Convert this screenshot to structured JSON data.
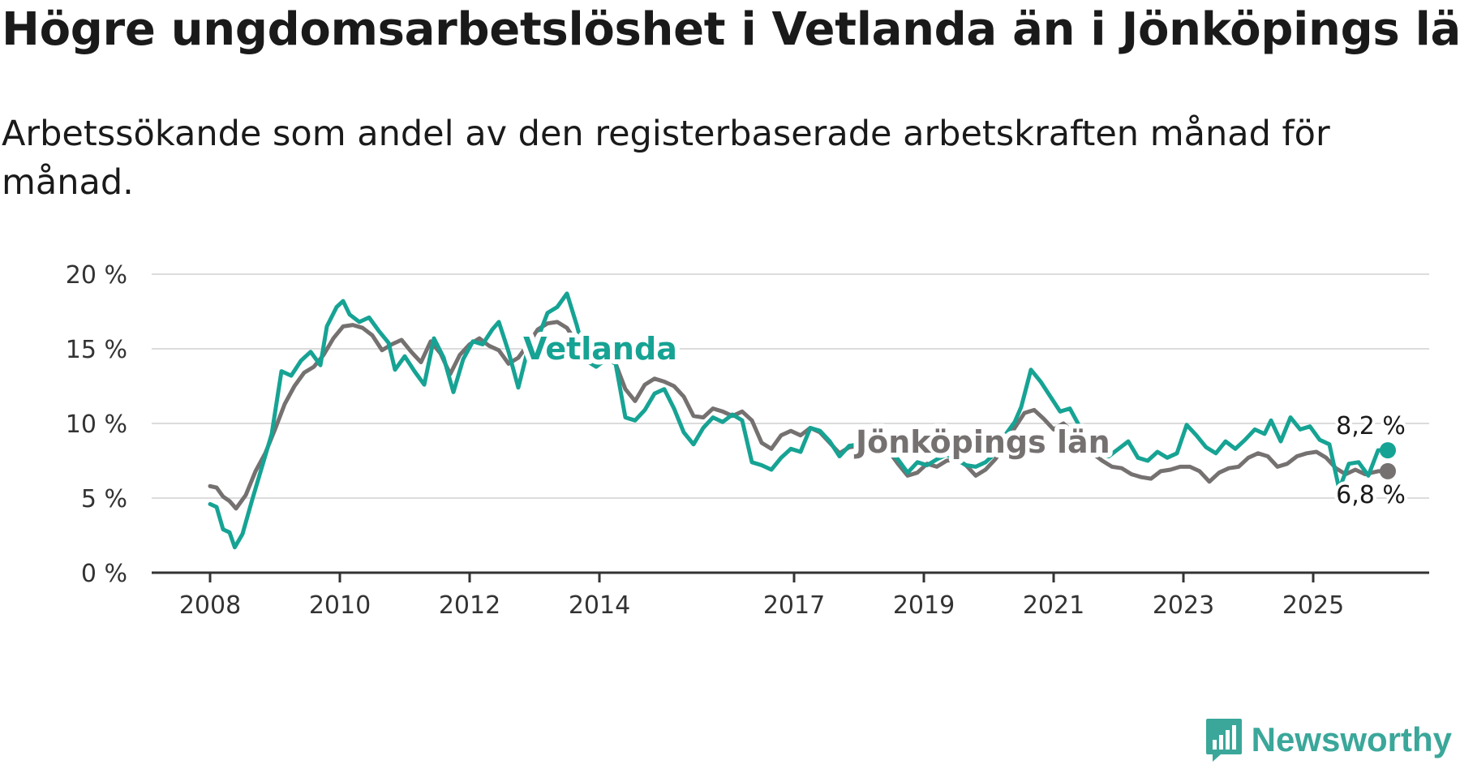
{
  "title": "Högre ungdomsarbetslöshet i Vetlanda än i Jönköpings län",
  "subtitle": "Arbetssökande som andel av den registerbaserade arbetskraften månad för månad.",
  "brand": {
    "name": "Newsworthy",
    "icon": "newsworthy-logo-icon",
    "color": "#3aa79a"
  },
  "chart_data": {
    "type": "line",
    "title": "Högre ungdomsarbetslöshet i Vetlanda än i Jönköpings län",
    "xlabel": "",
    "ylabel": "",
    "ylim": [
      0,
      20
    ],
    "xlim": [
      2008,
      2026.8
    ],
    "yticks": [
      {
        "value": 0,
        "label": "0 %"
      },
      {
        "value": 5,
        "label": "5 %"
      },
      {
        "value": 10,
        "label": "10 %"
      },
      {
        "value": 15,
        "label": "15 %"
      },
      {
        "value": 20,
        "label": "20 %"
      }
    ],
    "xticks": [
      {
        "value": 2008,
        "label": "2008"
      },
      {
        "value": 2010,
        "label": "2010"
      },
      {
        "value": 2012,
        "label": "2012"
      },
      {
        "value": 2014,
        "label": "2014"
      },
      {
        "value": 2017,
        "label": "2017"
      },
      {
        "value": 2019,
        "label": "2019"
      },
      {
        "value": 2021,
        "label": "2021"
      },
      {
        "value": 2023,
        "label": "2023"
      },
      {
        "value": 2025,
        "label": "2025"
      }
    ],
    "grid": true,
    "series": [
      {
        "name": "Jönköpings län",
        "color": "#767171",
        "label": "Jönköpings län",
        "end_label": "6,8 %",
        "points": [
          [
            2008.0,
            5.8
          ],
          [
            2008.1,
            5.7
          ],
          [
            2008.2,
            5.1
          ],
          [
            2008.3,
            4.8
          ],
          [
            2008.4,
            4.3
          ],
          [
            2008.55,
            5.2
          ],
          [
            2008.7,
            6.8
          ],
          [
            2008.85,
            8.0
          ],
          [
            2009.0,
            9.6
          ],
          [
            2009.15,
            11.3
          ],
          [
            2009.3,
            12.5
          ],
          [
            2009.45,
            13.4
          ],
          [
            2009.6,
            13.8
          ],
          [
            2009.75,
            14.6
          ],
          [
            2009.9,
            15.7
          ],
          [
            2010.05,
            16.5
          ],
          [
            2010.2,
            16.6
          ],
          [
            2010.35,
            16.4
          ],
          [
            2010.5,
            15.9
          ],
          [
            2010.65,
            14.9
          ],
          [
            2010.8,
            15.3
          ],
          [
            2010.95,
            15.6
          ],
          [
            2011.1,
            14.8
          ],
          [
            2011.25,
            14.1
          ],
          [
            2011.4,
            15.5
          ],
          [
            2011.55,
            14.7
          ],
          [
            2011.7,
            13.3
          ],
          [
            2011.85,
            14.6
          ],
          [
            2012.0,
            15.3
          ],
          [
            2012.15,
            15.7
          ],
          [
            2012.3,
            15.2
          ],
          [
            2012.45,
            14.9
          ],
          [
            2012.6,
            14.0
          ],
          [
            2012.75,
            14.4
          ],
          [
            2012.9,
            15.3
          ],
          [
            2013.05,
            16.3
          ],
          [
            2013.2,
            16.7
          ],
          [
            2013.35,
            16.8
          ],
          [
            2013.5,
            16.4
          ],
          [
            2013.65,
            15.4
          ],
          [
            2013.8,
            14.6
          ],
          [
            2013.95,
            14.2
          ],
          [
            2014.1,
            14.6
          ],
          [
            2014.25,
            14.0
          ],
          [
            2014.4,
            12.3
          ],
          [
            2014.55,
            11.5
          ],
          [
            2014.7,
            12.6
          ],
          [
            2014.85,
            13.0
          ],
          [
            2015.0,
            12.8
          ],
          [
            2015.15,
            12.5
          ],
          [
            2015.3,
            11.8
          ],
          [
            2015.45,
            10.5
          ],
          [
            2015.6,
            10.4
          ],
          [
            2015.75,
            11.0
          ],
          [
            2015.9,
            10.8
          ],
          [
            2016.05,
            10.5
          ],
          [
            2016.2,
            10.8
          ],
          [
            2016.35,
            10.2
          ],
          [
            2016.5,
            8.7
          ],
          [
            2016.65,
            8.3
          ],
          [
            2016.8,
            9.2
          ],
          [
            2016.95,
            9.5
          ],
          [
            2017.1,
            9.2
          ],
          [
            2017.25,
            9.7
          ],
          [
            2017.4,
            9.4
          ],
          [
            2017.55,
            8.7
          ],
          [
            2017.7,
            8.0
          ],
          [
            2017.85,
            8.4
          ],
          [
            2018.0,
            8.5
          ],
          [
            2018.15,
            8.6
          ],
          [
            2018.3,
            8.9
          ],
          [
            2018.45,
            8.2
          ],
          [
            2018.6,
            7.3
          ],
          [
            2018.75,
            6.5
          ],
          [
            2018.9,
            6.7
          ],
          [
            2019.05,
            7.3
          ],
          [
            2019.2,
            7.1
          ],
          [
            2019.35,
            7.5
          ],
          [
            2019.5,
            7.6
          ],
          [
            2019.65,
            7.2
          ],
          [
            2019.8,
            6.5
          ],
          [
            2019.95,
            6.9
          ],
          [
            2020.1,
            7.6
          ],
          [
            2020.25,
            8.6
          ],
          [
            2020.4,
            9.7
          ],
          [
            2020.55,
            10.7
          ],
          [
            2020.7,
            10.9
          ],
          [
            2020.85,
            10.3
          ],
          [
            2021.0,
            9.6
          ],
          [
            2021.15,
            10.0
          ],
          [
            2021.3,
            9.4
          ],
          [
            2021.45,
            8.5
          ],
          [
            2021.6,
            8.0
          ],
          [
            2021.75,
            7.5
          ],
          [
            2021.9,
            7.1
          ],
          [
            2022.05,
            7.0
          ],
          [
            2022.2,
            6.6
          ],
          [
            2022.35,
            6.4
          ],
          [
            2022.5,
            6.3
          ],
          [
            2022.65,
            6.8
          ],
          [
            2022.8,
            6.9
          ],
          [
            2022.95,
            7.1
          ],
          [
            2023.1,
            7.1
          ],
          [
            2023.25,
            6.8
          ],
          [
            2023.4,
            6.1
          ],
          [
            2023.55,
            6.7
          ],
          [
            2023.7,
            7.0
          ],
          [
            2023.85,
            7.1
          ],
          [
            2024.0,
            7.7
          ],
          [
            2024.15,
            8.0
          ],
          [
            2024.3,
            7.8
          ],
          [
            2024.45,
            7.1
          ],
          [
            2024.6,
            7.3
          ],
          [
            2024.75,
            7.8
          ],
          [
            2024.9,
            8.0
          ],
          [
            2025.05,
            8.1
          ],
          [
            2025.2,
            7.7
          ],
          [
            2025.35,
            7.0
          ],
          [
            2025.5,
            6.6
          ],
          [
            2025.65,
            6.9
          ],
          [
            2025.8,
            6.6
          ],
          [
            2026.0,
            6.8
          ],
          [
            2026.15,
            6.8
          ]
        ]
      },
      {
        "name": "Vetlanda",
        "color": "#16a394",
        "label": "Vetlanda",
        "end_label": "8,2 %",
        "points": [
          [
            2008.0,
            4.6
          ],
          [
            2008.1,
            4.4
          ],
          [
            2008.2,
            2.9
          ],
          [
            2008.3,
            2.7
          ],
          [
            2008.38,
            1.7
          ],
          [
            2008.5,
            2.6
          ],
          [
            2008.65,
            4.9
          ],
          [
            2008.8,
            7.1
          ],
          [
            2008.95,
            9.3
          ],
          [
            2009.1,
            13.5
          ],
          [
            2009.25,
            13.2
          ],
          [
            2009.4,
            14.2
          ],
          [
            2009.55,
            14.8
          ],
          [
            2009.7,
            13.9
          ],
          [
            2009.8,
            16.5
          ],
          [
            2009.95,
            17.8
          ],
          [
            2010.05,
            18.2
          ],
          [
            2010.15,
            17.3
          ],
          [
            2010.3,
            16.8
          ],
          [
            2010.45,
            17.1
          ],
          [
            2010.6,
            16.2
          ],
          [
            2010.75,
            15.4
          ],
          [
            2010.85,
            13.6
          ],
          [
            2011.0,
            14.5
          ],
          [
            2011.15,
            13.5
          ],
          [
            2011.3,
            12.6
          ],
          [
            2011.45,
            15.7
          ],
          [
            2011.6,
            14.4
          ],
          [
            2011.75,
            12.1
          ],
          [
            2011.9,
            14.3
          ],
          [
            2012.05,
            15.5
          ],
          [
            2012.2,
            15.3
          ],
          [
            2012.35,
            16.3
          ],
          [
            2012.45,
            16.8
          ],
          [
            2012.6,
            14.8
          ],
          [
            2012.75,
            12.4
          ],
          [
            2012.9,
            15.0
          ],
          [
            2013.05,
            15.7
          ],
          [
            2013.2,
            17.4
          ],
          [
            2013.35,
            17.8
          ],
          [
            2013.5,
            18.7
          ],
          [
            2013.65,
            16.6
          ],
          [
            2013.8,
            14.2
          ],
          [
            2013.95,
            13.8
          ],
          [
            2014.1,
            14.3
          ],
          [
            2014.25,
            14.0
          ],
          [
            2014.4,
            10.4
          ],
          [
            2014.55,
            10.2
          ],
          [
            2014.7,
            10.9
          ],
          [
            2014.85,
            12.0
          ],
          [
            2015.0,
            12.3
          ],
          [
            2015.15,
            11.0
          ],
          [
            2015.3,
            9.4
          ],
          [
            2015.45,
            8.6
          ],
          [
            2015.6,
            9.7
          ],
          [
            2015.75,
            10.4
          ],
          [
            2015.9,
            10.1
          ],
          [
            2016.05,
            10.6
          ],
          [
            2016.2,
            10.2
          ],
          [
            2016.35,
            7.4
          ],
          [
            2016.5,
            7.2
          ],
          [
            2016.65,
            6.9
          ],
          [
            2016.8,
            7.7
          ],
          [
            2016.95,
            8.3
          ],
          [
            2017.1,
            8.1
          ],
          [
            2017.25,
            9.7
          ],
          [
            2017.4,
            9.5
          ],
          [
            2017.55,
            8.8
          ],
          [
            2017.7,
            7.8
          ],
          [
            2017.85,
            8.5
          ],
          [
            2018.0,
            8.6
          ],
          [
            2018.15,
            8.9
          ],
          [
            2018.3,
            8.8
          ],
          [
            2018.45,
            8.1
          ],
          [
            2018.6,
            7.6
          ],
          [
            2018.75,
            6.7
          ],
          [
            2018.9,
            7.4
          ],
          [
            2019.05,
            7.2
          ],
          [
            2019.2,
            7.6
          ],
          [
            2019.35,
            7.9
          ],
          [
            2019.5,
            7.6
          ],
          [
            2019.65,
            7.2
          ],
          [
            2019.8,
            7.1
          ],
          [
            2019.95,
            7.4
          ],
          [
            2020.1,
            8.0
          ],
          [
            2020.25,
            9.2
          ],
          [
            2020.4,
            10.1
          ],
          [
            2020.5,
            11.1
          ],
          [
            2020.65,
            13.6
          ],
          [
            2020.8,
            12.8
          ],
          [
            2020.95,
            11.8
          ],
          [
            2021.1,
            10.8
          ],
          [
            2021.25,
            11.0
          ],
          [
            2021.4,
            9.8
          ],
          [
            2021.55,
            8.6
          ],
          [
            2021.7,
            8.0
          ],
          [
            2021.85,
            7.8
          ],
          [
            2022.0,
            8.3
          ],
          [
            2022.15,
            8.8
          ],
          [
            2022.3,
            7.7
          ],
          [
            2022.45,
            7.5
          ],
          [
            2022.6,
            8.1
          ],
          [
            2022.75,
            7.7
          ],
          [
            2022.9,
            8.0
          ],
          [
            2023.05,
            9.9
          ],
          [
            2023.2,
            9.2
          ],
          [
            2023.35,
            8.4
          ],
          [
            2023.5,
            8.0
          ],
          [
            2023.65,
            8.8
          ],
          [
            2023.8,
            8.3
          ],
          [
            2023.95,
            8.9
          ],
          [
            2024.1,
            9.6
          ],
          [
            2024.25,
            9.3
          ],
          [
            2024.35,
            10.2
          ],
          [
            2024.5,
            8.8
          ],
          [
            2024.65,
            10.4
          ],
          [
            2024.8,
            9.6
          ],
          [
            2024.95,
            9.8
          ],
          [
            2025.1,
            8.9
          ],
          [
            2025.25,
            8.6
          ],
          [
            2025.4,
            5.6
          ],
          [
            2025.55,
            7.3
          ],
          [
            2025.7,
            7.4
          ],
          [
            2025.85,
            6.5
          ],
          [
            2026.0,
            8.2
          ],
          [
            2026.15,
            8.2
          ]
        ]
      }
    ]
  }
}
